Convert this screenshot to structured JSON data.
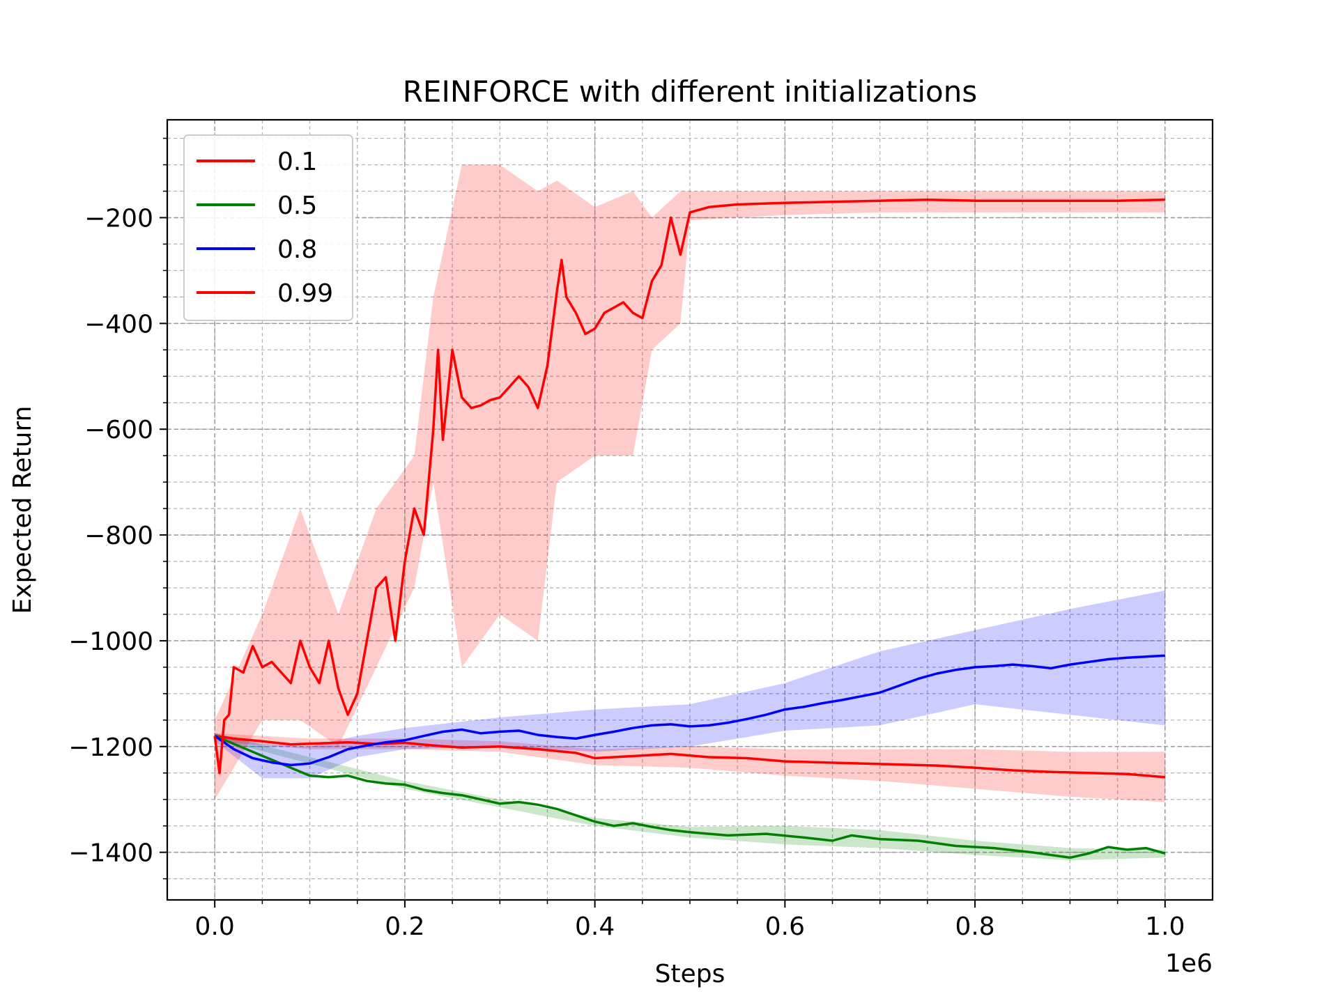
{
  "chart_data": {
    "type": "line",
    "title": "REINFORCE with different initializations",
    "xlabel": "Steps",
    "ylabel": "Expected Return",
    "x_offset_label": "1e6",
    "xlim": [
      -50000,
      1050000
    ],
    "ylim": [
      -1490,
      -15
    ],
    "x_ticks": [
      0,
      200000,
      400000,
      600000,
      800000,
      1000000
    ],
    "x_tick_labels": [
      "0.0",
      "0.2",
      "0.4",
      "0.6",
      "0.8",
      "1.0"
    ],
    "y_ticks": [
      -1400,
      -1200,
      -1000,
      -800,
      -600,
      -400,
      -200
    ],
    "y_tick_labels": [
      "−1400",
      "−1200",
      "−1000",
      "−800",
      "−600",
      "−400",
      "−200"
    ],
    "grid": true,
    "legend_position": "top-left",
    "series": [
      {
        "name": "0.1",
        "color": "#ff0000",
        "points": [
          [
            0,
            -1180
          ],
          [
            20000,
            -1185
          ],
          [
            50000,
            -1190
          ],
          [
            80000,
            -1196
          ],
          [
            110000,
            -1194
          ],
          [
            140000,
            -1192
          ],
          [
            170000,
            -1195
          ],
          [
            200000,
            -1193
          ],
          [
            230000,
            -1198
          ],
          [
            260000,
            -1202
          ],
          [
            300000,
            -1200
          ],
          [
            340000,
            -1205
          ],
          [
            380000,
            -1212
          ],
          [
            400000,
            -1222
          ],
          [
            440000,
            -1218
          ],
          [
            480000,
            -1214
          ],
          [
            520000,
            -1220
          ],
          [
            560000,
            -1222
          ],
          [
            600000,
            -1228
          ],
          [
            640000,
            -1230
          ],
          [
            680000,
            -1232
          ],
          [
            720000,
            -1234
          ],
          [
            760000,
            -1236
          ],
          [
            800000,
            -1240
          ],
          [
            840000,
            -1245
          ],
          [
            880000,
            -1248
          ],
          [
            920000,
            -1250
          ],
          [
            960000,
            -1252
          ],
          [
            1000000,
            -1258
          ]
        ],
        "band": [
          [
            0,
            -1175,
            -1190
          ],
          [
            100000,
            -1185,
            -1205
          ],
          [
            200000,
            -1185,
            -1205
          ],
          [
            300000,
            -1190,
            -1210
          ],
          [
            400000,
            -1205,
            -1235
          ],
          [
            500000,
            -1200,
            -1240
          ],
          [
            600000,
            -1205,
            -1255
          ],
          [
            700000,
            -1205,
            -1265
          ],
          [
            800000,
            -1205,
            -1280
          ],
          [
            900000,
            -1210,
            -1295
          ],
          [
            1000000,
            -1210,
            -1305
          ]
        ]
      },
      {
        "name": "0.5",
        "color": "#008000",
        "points": [
          [
            0,
            -1180
          ],
          [
            20000,
            -1195
          ],
          [
            40000,
            -1210
          ],
          [
            60000,
            -1225
          ],
          [
            80000,
            -1240
          ],
          [
            100000,
            -1255
          ],
          [
            120000,
            -1258
          ],
          [
            140000,
            -1255
          ],
          [
            160000,
            -1265
          ],
          [
            180000,
            -1270
          ],
          [
            200000,
            -1272
          ],
          [
            220000,
            -1282
          ],
          [
            240000,
            -1288
          ],
          [
            260000,
            -1292
          ],
          [
            280000,
            -1300
          ],
          [
            300000,
            -1308
          ],
          [
            320000,
            -1305
          ],
          [
            340000,
            -1310
          ],
          [
            360000,
            -1318
          ],
          [
            380000,
            -1330
          ],
          [
            400000,
            -1342
          ],
          [
            420000,
            -1350
          ],
          [
            440000,
            -1345
          ],
          [
            460000,
            -1352
          ],
          [
            480000,
            -1358
          ],
          [
            500000,
            -1362
          ],
          [
            540000,
            -1368
          ],
          [
            580000,
            -1365
          ],
          [
            620000,
            -1372
          ],
          [
            650000,
            -1378
          ],
          [
            670000,
            -1368
          ],
          [
            700000,
            -1375
          ],
          [
            740000,
            -1378
          ],
          [
            780000,
            -1388
          ],
          [
            820000,
            -1392
          ],
          [
            860000,
            -1400
          ],
          [
            900000,
            -1410
          ],
          [
            920000,
            -1402
          ],
          [
            940000,
            -1390
          ],
          [
            960000,
            -1395
          ],
          [
            980000,
            -1392
          ],
          [
            1000000,
            -1402
          ]
        ],
        "band": [
          [
            0,
            -1175,
            -1185
          ],
          [
            200000,
            -1265,
            -1280
          ],
          [
            400000,
            -1335,
            -1350
          ],
          [
            500000,
            -1352,
            -1372
          ],
          [
            600000,
            -1350,
            -1385
          ],
          [
            700000,
            -1358,
            -1392
          ],
          [
            800000,
            -1378,
            -1405
          ],
          [
            900000,
            -1392,
            -1415
          ],
          [
            1000000,
            -1395,
            -1410
          ]
        ]
      },
      {
        "name": "0.8",
        "color": "#0000ff",
        "points": [
          [
            0,
            -1180
          ],
          [
            20000,
            -1205
          ],
          [
            40000,
            -1222
          ],
          [
            60000,
            -1230
          ],
          [
            80000,
            -1235
          ],
          [
            100000,
            -1232
          ],
          [
            120000,
            -1220
          ],
          [
            140000,
            -1205
          ],
          [
            160000,
            -1198
          ],
          [
            180000,
            -1192
          ],
          [
            200000,
            -1188
          ],
          [
            220000,
            -1180
          ],
          [
            240000,
            -1172
          ],
          [
            260000,
            -1168
          ],
          [
            280000,
            -1175
          ],
          [
            300000,
            -1172
          ],
          [
            320000,
            -1170
          ],
          [
            340000,
            -1178
          ],
          [
            360000,
            -1182
          ],
          [
            380000,
            -1185
          ],
          [
            400000,
            -1178
          ],
          [
            420000,
            -1172
          ],
          [
            440000,
            -1165
          ],
          [
            460000,
            -1160
          ],
          [
            480000,
            -1158
          ],
          [
            500000,
            -1162
          ],
          [
            520000,
            -1160
          ],
          [
            540000,
            -1155
          ],
          [
            560000,
            -1148
          ],
          [
            580000,
            -1140
          ],
          [
            600000,
            -1130
          ],
          [
            620000,
            -1125
          ],
          [
            640000,
            -1118
          ],
          [
            660000,
            -1112
          ],
          [
            680000,
            -1105
          ],
          [
            700000,
            -1098
          ],
          [
            720000,
            -1085
          ],
          [
            740000,
            -1072
          ],
          [
            760000,
            -1062
          ],
          [
            780000,
            -1055
          ],
          [
            800000,
            -1050
          ],
          [
            820000,
            -1048
          ],
          [
            840000,
            -1045
          ],
          [
            860000,
            -1048
          ],
          [
            880000,
            -1052
          ],
          [
            900000,
            -1045
          ],
          [
            920000,
            -1040
          ],
          [
            940000,
            -1035
          ],
          [
            960000,
            -1032
          ],
          [
            980000,
            -1030
          ],
          [
            1000000,
            -1028
          ]
        ],
        "band": [
          [
            0,
            -1175,
            -1190
          ],
          [
            50000,
            -1195,
            -1260
          ],
          [
            100000,
            -1200,
            -1260
          ],
          [
            150000,
            -1180,
            -1220
          ],
          [
            200000,
            -1165,
            -1205
          ],
          [
            300000,
            -1145,
            -1200
          ],
          [
            400000,
            -1130,
            -1210
          ],
          [
            500000,
            -1120,
            -1200
          ],
          [
            600000,
            -1080,
            -1170
          ],
          [
            700000,
            -1020,
            -1160
          ],
          [
            800000,
            -980,
            -1120
          ],
          [
            900000,
            -940,
            -1140
          ],
          [
            1000000,
            -905,
            -1160
          ]
        ]
      },
      {
        "name": "0.99",
        "color": "#ff0000",
        "points": [
          [
            0,
            -1180
          ],
          [
            5000,
            -1250
          ],
          [
            10000,
            -1150
          ],
          [
            15000,
            -1140
          ],
          [
            20000,
            -1050
          ],
          [
            30000,
            -1060
          ],
          [
            40000,
            -1010
          ],
          [
            50000,
            -1050
          ],
          [
            60000,
            -1040
          ],
          [
            70000,
            -1060
          ],
          [
            80000,
            -1080
          ],
          [
            90000,
            -1000
          ],
          [
            100000,
            -1050
          ],
          [
            110000,
            -1080
          ],
          [
            120000,
            -1000
          ],
          [
            130000,
            -1090
          ],
          [
            140000,
            -1140
          ],
          [
            150000,
            -1100
          ],
          [
            160000,
            -1000
          ],
          [
            170000,
            -900
          ],
          [
            180000,
            -880
          ],
          [
            190000,
            -1000
          ],
          [
            200000,
            -850
          ],
          [
            210000,
            -750
          ],
          [
            220000,
            -800
          ],
          [
            230000,
            -600
          ],
          [
            235000,
            -450
          ],
          [
            240000,
            -620
          ],
          [
            250000,
            -450
          ],
          [
            260000,
            -540
          ],
          [
            270000,
            -560
          ],
          [
            280000,
            -555
          ],
          [
            290000,
            -545
          ],
          [
            300000,
            -540
          ],
          [
            310000,
            -520
          ],
          [
            320000,
            -500
          ],
          [
            330000,
            -520
          ],
          [
            340000,
            -560
          ],
          [
            350000,
            -480
          ],
          [
            360000,
            -340
          ],
          [
            365000,
            -280
          ],
          [
            370000,
            -350
          ],
          [
            380000,
            -380
          ],
          [
            390000,
            -420
          ],
          [
            400000,
            -410
          ],
          [
            410000,
            -380
          ],
          [
            420000,
            -370
          ],
          [
            430000,
            -360
          ],
          [
            440000,
            -380
          ],
          [
            450000,
            -390
          ],
          [
            460000,
            -320
          ],
          [
            470000,
            -290
          ],
          [
            480000,
            -200
          ],
          [
            490000,
            -270
          ],
          [
            500000,
            -190
          ],
          [
            520000,
            -180
          ],
          [
            550000,
            -175
          ],
          [
            600000,
            -172
          ],
          [
            650000,
            -170
          ],
          [
            700000,
            -168
          ],
          [
            750000,
            -166
          ],
          [
            800000,
            -168
          ],
          [
            850000,
            -168
          ],
          [
            900000,
            -168
          ],
          [
            950000,
            -168
          ],
          [
            1000000,
            -166
          ]
        ],
        "band": [
          [
            0,
            -1150,
            -1300
          ],
          [
            50000,
            -950,
            -1150
          ],
          [
            90000,
            -750,
            -1150
          ],
          [
            130000,
            -950,
            -1200
          ],
          [
            170000,
            -750,
            -1050
          ],
          [
            210000,
            -650,
            -900
          ],
          [
            230000,
            -350,
            -700
          ],
          [
            260000,
            -100,
            -1050
          ],
          [
            300000,
            -100,
            -950
          ],
          [
            340000,
            -150,
            -1000
          ],
          [
            360000,
            -130,
            -700
          ],
          [
            400000,
            -180,
            -650
          ],
          [
            440000,
            -150,
            -650
          ],
          [
            460000,
            -200,
            -450
          ],
          [
            490000,
            -150,
            -400
          ],
          [
            500000,
            -150,
            -205
          ],
          [
            600000,
            -150,
            -195
          ],
          [
            700000,
            -150,
            -190
          ],
          [
            800000,
            -150,
            -190
          ],
          [
            900000,
            -150,
            -190
          ],
          [
            1000000,
            -150,
            -190
          ]
        ]
      }
    ]
  }
}
